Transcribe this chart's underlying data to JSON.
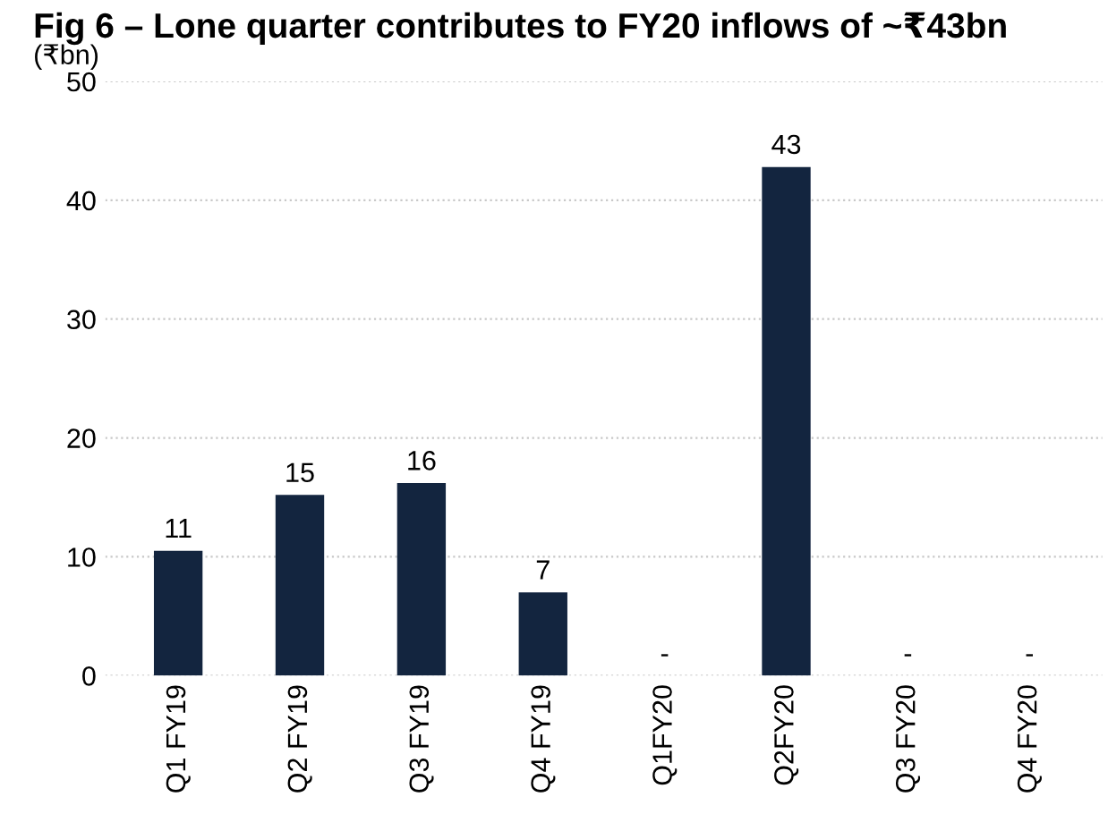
{
  "chart_data": {
    "type": "bar",
    "title": "Fig 6 – Lone quarter contributes to FY20 inflows of ~₹43bn",
    "ylabel": "(₹bn)",
    "categories": [
      "Q1 FY19",
      "Q2 FY19",
      "Q3 FY19",
      "Q4 FY19",
      "Q1FY20",
      "Q2FY20",
      "Q3 FY20",
      "Q4 FY20"
    ],
    "values": [
      10.5,
      15.2,
      16.2,
      7.0,
      0,
      42.8,
      0,
      0
    ],
    "value_labels": [
      "11",
      "15",
      "16",
      "7",
      "-",
      "43",
      "-",
      "-"
    ],
    "color": "#13253f",
    "ylim": [
      0,
      50
    ],
    "yticks": [
      0,
      10,
      20,
      30,
      40,
      50
    ],
    "grid": "y"
  }
}
